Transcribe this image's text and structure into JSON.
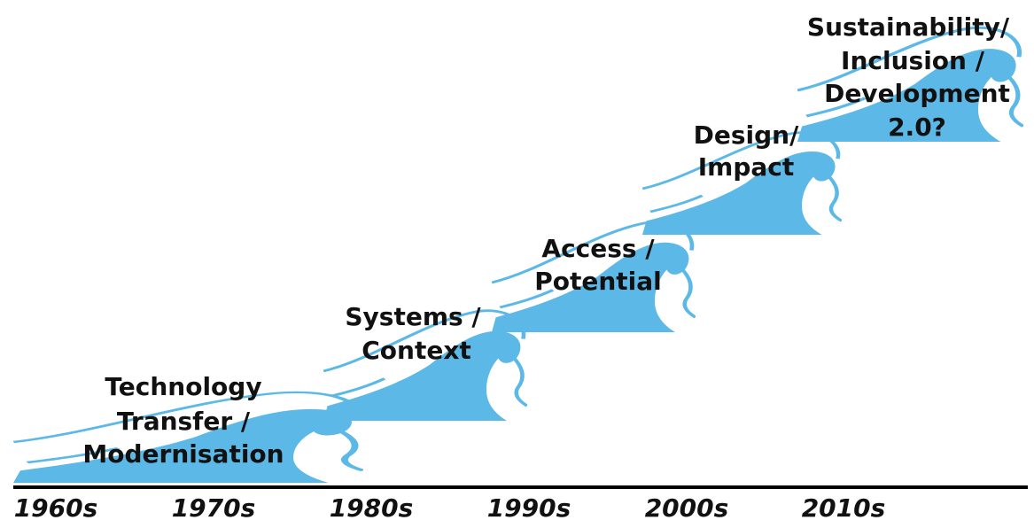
{
  "waves": [
    {
      "lines": [
        "Technology",
        "Transfer /",
        "Modernisation"
      ]
    },
    {
      "lines": [
        "Systems /",
        "Context"
      ]
    },
    {
      "lines": [
        "Access /",
        "Potential"
      ]
    },
    {
      "lines": [
        "Design/",
        "Impact"
      ]
    },
    {
      "lines": [
        "Sustainability/",
        "Inclusion /",
        "Development",
        "2.0?"
      ]
    }
  ],
  "decades": [
    "1960s",
    "1970s",
    "1980s",
    "1990s",
    "2000s",
    "2010s"
  ]
}
